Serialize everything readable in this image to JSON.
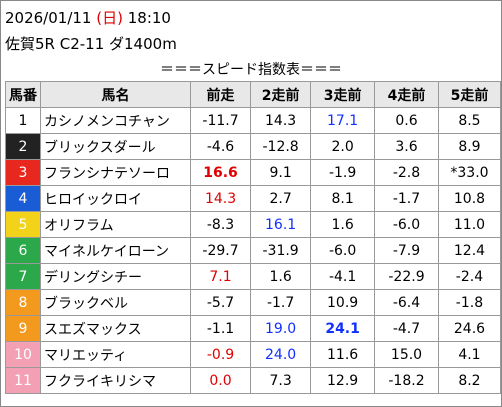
{
  "header": {
    "date": "2026/01/11",
    "weekday": "(日)",
    "time": "18:10",
    "race": "佐賀5R C2-11 ダ1400m"
  },
  "title": "＝＝＝スピード指数表＝＝＝",
  "table": {
    "columns": [
      "馬番",
      "馬名",
      "前走",
      "2走前",
      "3走前",
      "4走前",
      "5走前"
    ],
    "rows": [
      [
        "1",
        "カシノメンコチャン",
        "-11.7",
        "14.3",
        "17.1",
        "0.6",
        "8.5"
      ],
      [
        "2",
        "ブリックスダール",
        "-4.6",
        "-12.8",
        "2.0",
        "3.6",
        "8.9"
      ],
      [
        "3",
        "フランシナテソーロ",
        "16.6",
        "9.1",
        "-1.9",
        "-2.8",
        "*33.0"
      ],
      [
        "4",
        "ヒロイックロイ",
        "14.3",
        "2.7",
        "8.1",
        "-1.7",
        "10.8"
      ],
      [
        "5",
        "オリフラム",
        "-8.3",
        "16.1",
        "1.6",
        "-6.0",
        "11.0"
      ],
      [
        "6",
        "マイネルケイローン",
        "-29.7",
        "-31.9",
        "-6.0",
        "-7.9",
        "12.4"
      ],
      [
        "7",
        "デリングシチー",
        "7.1",
        "1.6",
        "-4.1",
        "-22.9",
        "-2.4"
      ],
      [
        "8",
        "ブラックベル",
        "-5.7",
        "-1.7",
        "10.9",
        "-6.4",
        "-1.8"
      ],
      [
        "9",
        "スエズマックス",
        "-1.1",
        "19.0",
        "24.1",
        "-4.7",
        "24.6"
      ],
      [
        "10",
        "マリエッティ",
        "-0.9",
        "24.0",
        "11.6",
        "15.0",
        "4.1"
      ],
      [
        "11",
        "フクライキリシマ",
        "0.0",
        "7.3",
        "12.9",
        "-18.2",
        "8.2"
      ]
    ]
  }
}
